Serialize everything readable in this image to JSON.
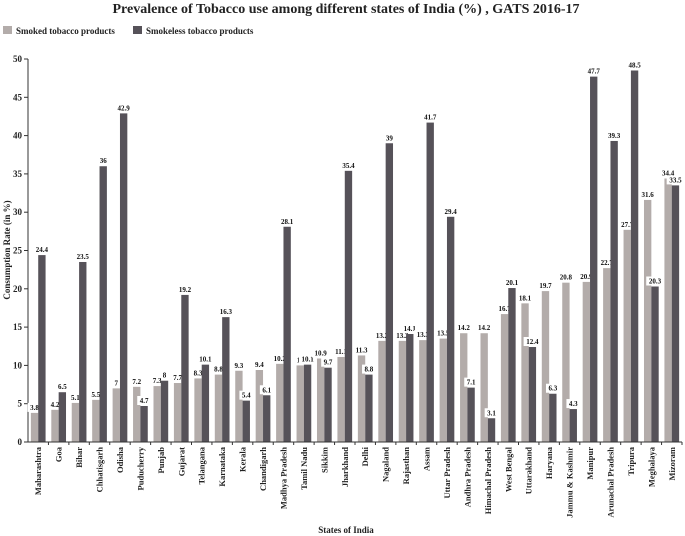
{
  "chart_data": {
    "type": "bar",
    "title": "Prevalence of Tobacco use among different states of India (%) , GATS 2016-17",
    "xlabel": "States of India",
    "ylabel": "Consumption Rate (in %)",
    "ylim": [
      0,
      50
    ],
    "yticks": [
      0,
      5,
      10,
      15,
      20,
      25,
      30,
      35,
      40,
      45,
      50
    ],
    "grid": false,
    "legend_position": "top-left",
    "categories": [
      "Maharashtra",
      "Goa",
      "Bihar",
      "Chhatisgarh",
      "Odisha",
      "Puducherry",
      "Punjab",
      "Gujarat",
      "Telangana",
      "Karnataka",
      "Kerala",
      "Chandigarh",
      "Madhya Pradesh",
      "Tamil Nadu",
      "Sikkim",
      "Jharkhand",
      "Delhi",
      "Nagaland",
      "Rajasthan",
      "Assam",
      "Uttar Pradesh",
      "Andhra Pradesh",
      "Himachal Pradesh",
      "West Bengal",
      "Uttarakhand",
      "Haryana",
      "Jammu & Kashmir",
      "Manipur",
      "Arunachal Pradesh",
      "Tripura",
      "Meghalaya",
      "Mizoram"
    ],
    "series": [
      {
        "name": "Smoked tobacco products",
        "color": "#b3acaa",
        "values": [
          3.8,
          4.2,
          5.1,
          5.5,
          7,
          7.2,
          7.3,
          7.7,
          8.3,
          8.8,
          9.3,
          9.4,
          10.2,
          10,
          10.9,
          11.1,
          11.3,
          13.2,
          13.2,
          13.3,
          13.5,
          14.2,
          14.2,
          16.7,
          18.1,
          19.7,
          20.8,
          20.9,
          22.7,
          27.7,
          31.6,
          34.4
        ]
      },
      {
        "name": "Smokeless tobacco products",
        "color": "#565259",
        "values": [
          24.4,
          6.5,
          23.5,
          36,
          42.9,
          4.7,
          8,
          19.2,
          10.1,
          16.3,
          5.4,
          6.1,
          28.1,
          10.1,
          9.7,
          35.4,
          8.8,
          39,
          14.1,
          41.7,
          29.4,
          7.1,
          3.1,
          20.1,
          12.4,
          6.3,
          4.3,
          47.7,
          39.3,
          48.5,
          20.3,
          33.5
        ]
      }
    ]
  }
}
